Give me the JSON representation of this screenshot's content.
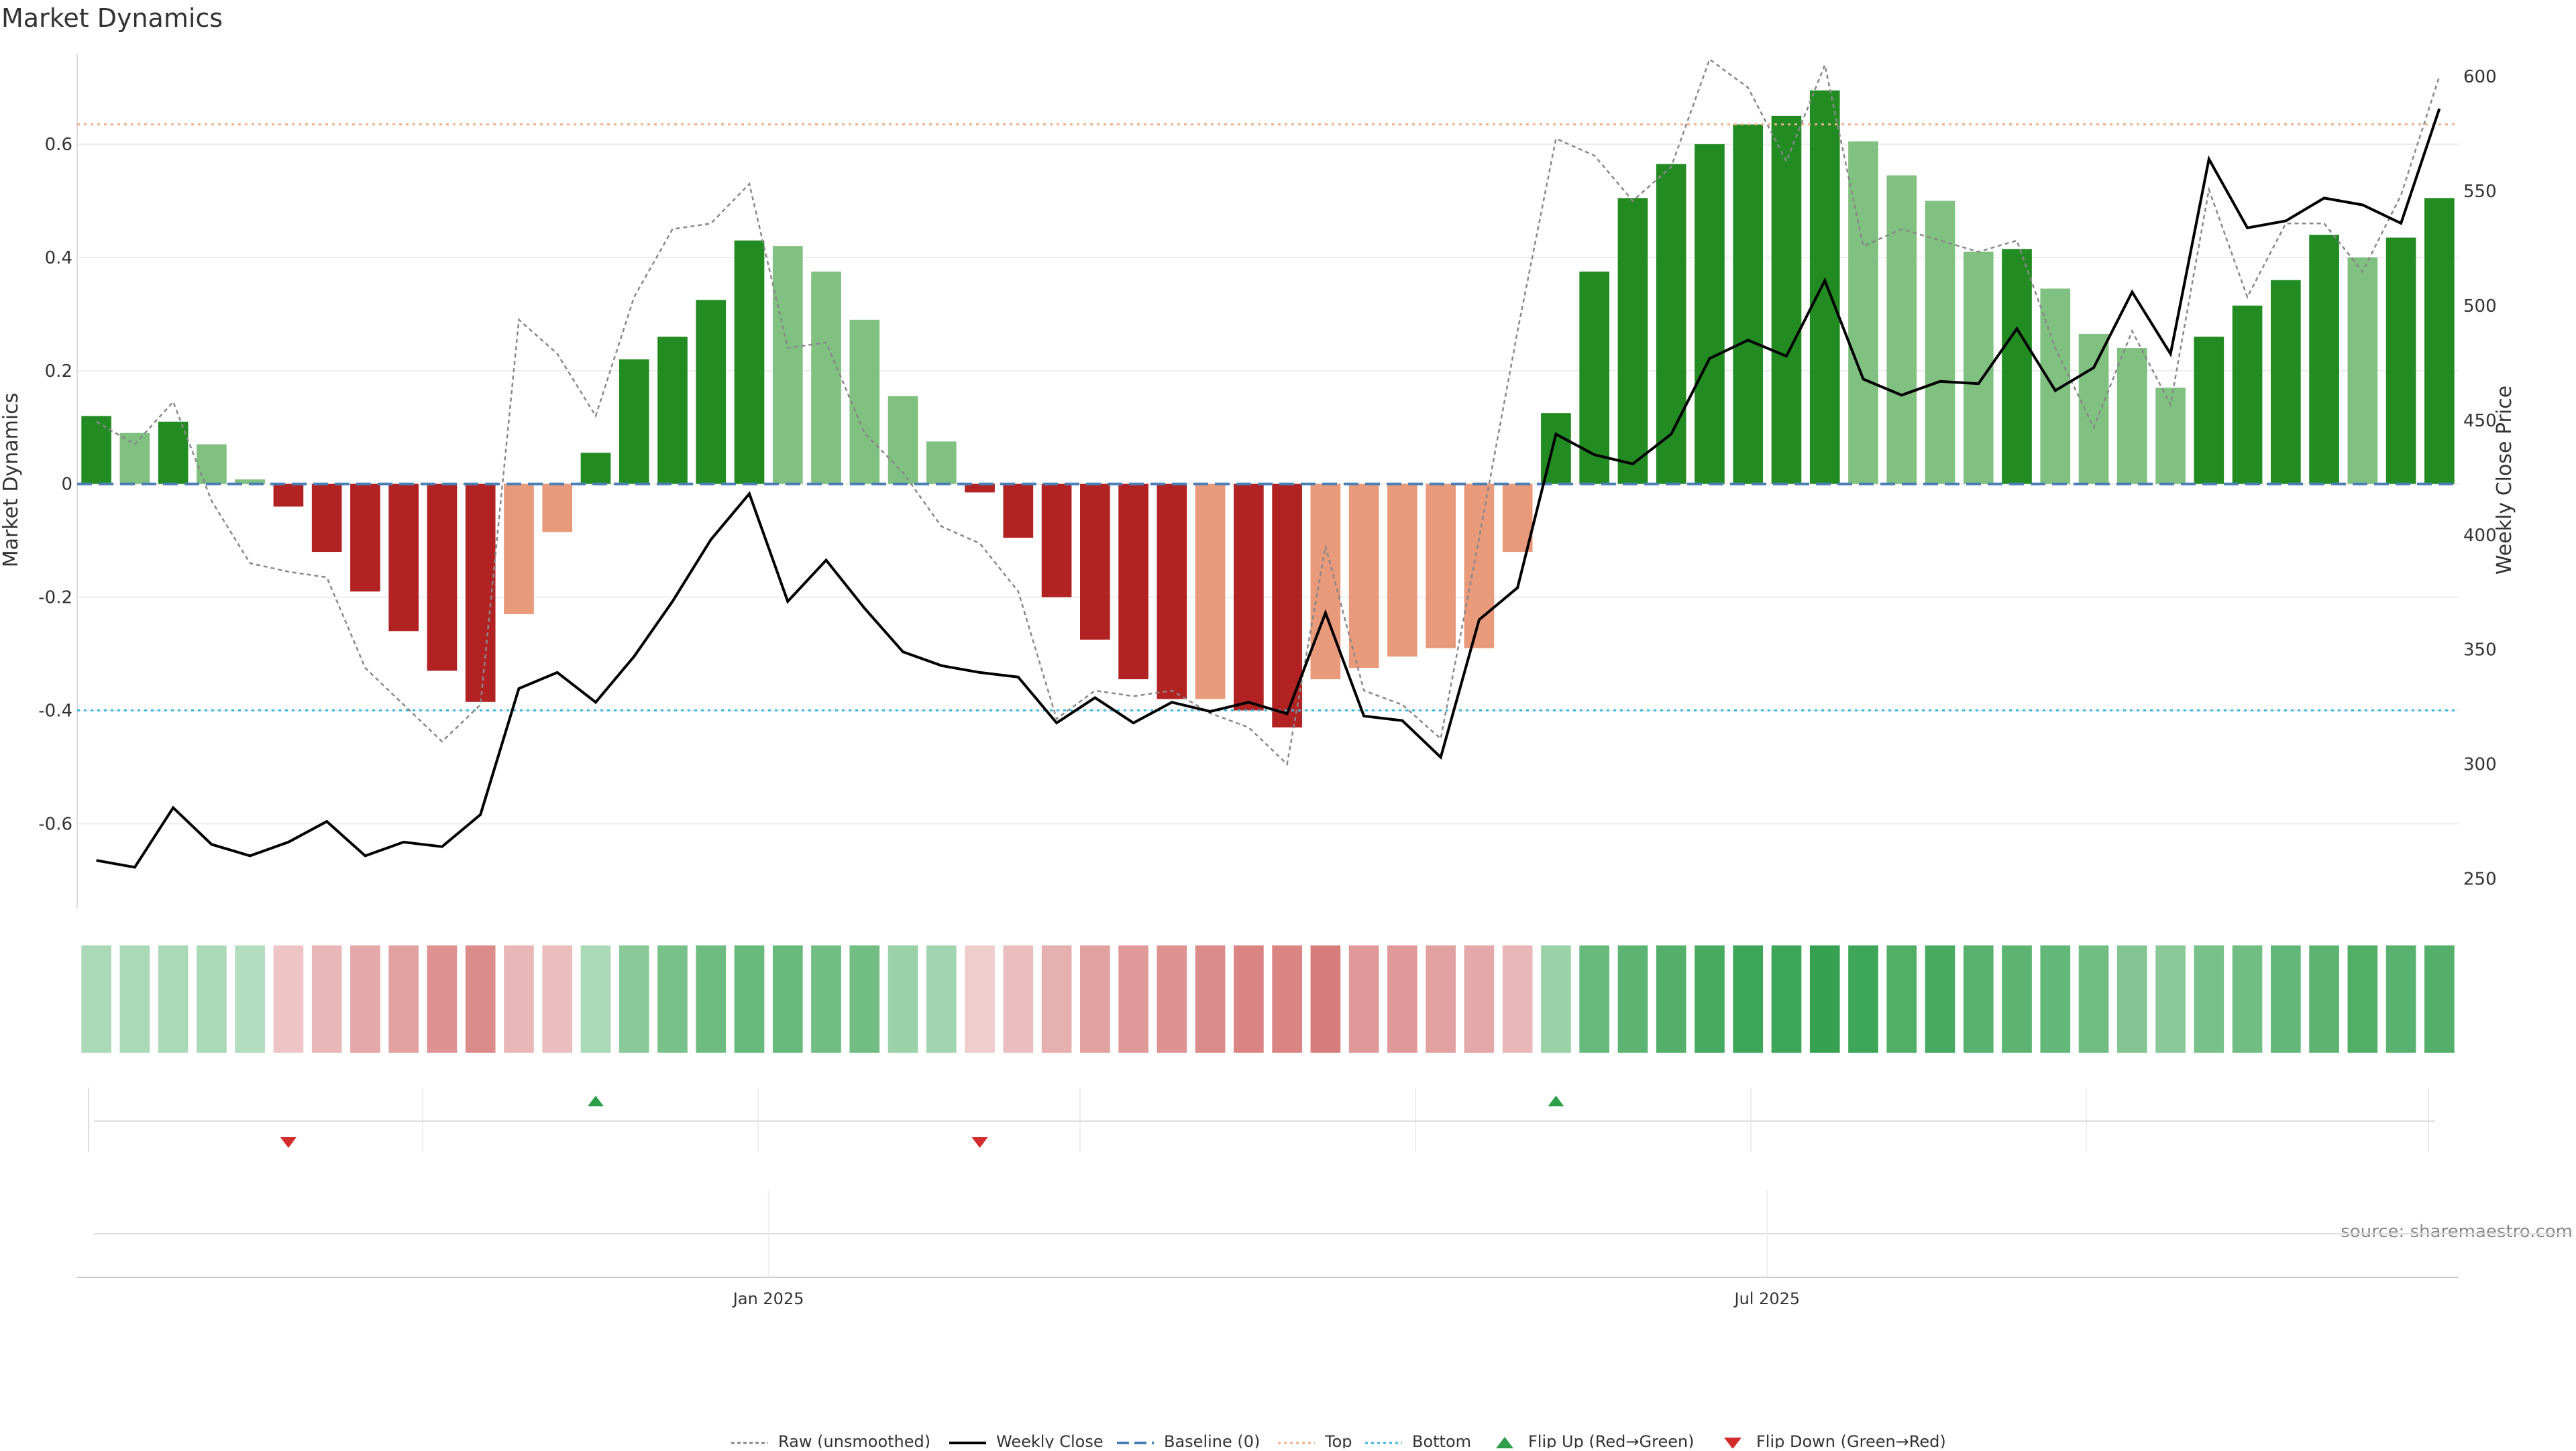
{
  "chart_data": {
    "type": "bar",
    "title": "Market Dynamics",
    "ylabel": "Market Dynamics",
    "y2label": "Weekly Close Price",
    "ylim": [
      -0.75,
      0.76
    ],
    "y2lim": [
      237,
      610
    ],
    "yticks": [
      -0.6,
      -0.4,
      -0.2,
      0,
      0.2,
      0.4,
      0.6
    ],
    "ytick_labels": [
      "-0.6",
      "-0.4",
      "-0.2",
      "0",
      "0.2",
      "0.4",
      "0.6"
    ],
    "y2ticks": [
      250,
      300,
      350,
      400,
      450,
      500,
      550,
      600
    ],
    "y2tick_labels": [
      "250",
      "300",
      "350",
      "400",
      "450",
      "500",
      "550",
      "600"
    ],
    "x_tick_labels": [
      {
        "label": "Jan 2025",
        "index": 17.5
      },
      {
        "label": "Jul 2025",
        "index": 43.5
      }
    ],
    "top_line": 0.635,
    "bottom_line": -0.4,
    "baseline": 0,
    "smoothed": [
      0.12,
      0.09,
      0.11,
      0.07,
      0.008,
      -0.04,
      -0.12,
      -0.19,
      -0.26,
      -0.33,
      -0.385,
      -0.23,
      -0.085,
      0.055,
      0.22,
      0.26,
      0.325,
      0.43,
      0.42,
      0.375,
      0.29,
      0.155,
      0.075,
      -0.015,
      -0.095,
      -0.2,
      -0.275,
      -0.345,
      -0.38,
      -0.38,
      -0.4,
      -0.43,
      -0.345,
      -0.325,
      -0.305,
      -0.29,
      -0.29,
      -0.12,
      0.125,
      0.375,
      0.505,
      0.565,
      0.6,
      0.635,
      0.65,
      0.695,
      0.605,
      0.545,
      0.5,
      0.41,
      0.415,
      0.345,
      0.265,
      0.24,
      0.17,
      0.26,
      0.315,
      0.36,
      0.44,
      0.4,
      0.435,
      0.505
    ],
    "bar_strength": [
      "strong",
      "weak",
      "strong",
      "weak",
      "weak",
      "strong",
      "strong",
      "strong",
      "strong",
      "strong",
      "strong",
      "weak",
      "weak",
      "strong",
      "strong",
      "strong",
      "strong",
      "strong",
      "weak",
      "weak",
      "weak",
      "weak",
      "weak",
      "strong",
      "strong",
      "strong",
      "strong",
      "strong",
      "strong",
      "weak",
      "strong",
      "strong",
      "weak",
      "weak",
      "weak",
      "weak",
      "weak",
      "weak",
      "strong",
      "strong",
      "strong",
      "strong",
      "strong",
      "strong",
      "strong",
      "strong",
      "weak",
      "weak",
      "weak",
      "weak",
      "strong",
      "weak",
      "weak",
      "weak",
      "weak",
      "strong",
      "strong",
      "strong",
      "strong",
      "weak",
      "strong",
      "strong"
    ],
    "raw": [
      0.11,
      0.07,
      0.145,
      -0.03,
      -0.14,
      -0.155,
      -0.165,
      -0.325,
      -0.39,
      -0.455,
      -0.39,
      0.29,
      0.23,
      0.12,
      0.33,
      0.45,
      0.46,
      0.53,
      0.24,
      0.25,
      0.09,
      0.02,
      -0.075,
      -0.105,
      -0.19,
      -0.415,
      -0.365,
      -0.375,
      -0.365,
      -0.405,
      -0.43,
      -0.495,
      -0.11,
      -0.365,
      -0.39,
      -0.45,
      -0.095,
      0.27,
      0.61,
      0.58,
      0.5,
      0.56,
      0.75,
      0.7,
      0.57,
      0.74,
      0.42,
      0.45,
      0.43,
      0.41,
      0.43,
      0.24,
      0.1,
      0.27,
      0.14,
      0.52,
      0.33,
      0.46,
      0.46,
      0.375,
      0.51,
      0.72
    ],
    "weekly_close": [
      258,
      255,
      281,
      265,
      260,
      266,
      275,
      260,
      266,
      264,
      278,
      333,
      340,
      327,
      347,
      371,
      398,
      418,
      371,
      389,
      368,
      349,
      343,
      340,
      338,
      318,
      329,
      318,
      327,
      323,
      327,
      322,
      366,
      321,
      319,
      303,
      363,
      377,
      444,
      435,
      431,
      444,
      477,
      485,
      478,
      511,
      468,
      461,
      467,
      466,
      490,
      463,
      473,
      506,
      479,
      564,
      534,
      537,
      547,
      544,
      536,
      586
    ],
    "heatmap_intensity": [
      0.25,
      0.25,
      0.25,
      0.25,
      0.2,
      0.15,
      0.25,
      0.35,
      0.4,
      0.5,
      0.55,
      0.25,
      0.2,
      0.25,
      0.45,
      0.55,
      0.62,
      0.65,
      0.65,
      0.6,
      0.6,
      0.35,
      0.3,
      0.1,
      0.2,
      0.3,
      0.4,
      0.45,
      0.5,
      0.55,
      0.6,
      0.6,
      0.65,
      0.45,
      0.45,
      0.4,
      0.35,
      0.25,
      0.35,
      0.65,
      0.72,
      0.78,
      0.85,
      0.9,
      0.9,
      0.95,
      0.9,
      0.8,
      0.85,
      0.75,
      0.72,
      0.68,
      0.6,
      0.5,
      0.45,
      0.55,
      0.6,
      0.68,
      0.72,
      0.8,
      0.75,
      0.78
    ],
    "flip_up_indices": [
      13,
      38
    ],
    "flip_down_indices": [
      5,
      23
    ],
    "legend": [
      "Raw (unsmoothed)",
      "Weekly Close",
      "Baseline (0)",
      "Top",
      "Bottom",
      "Flip Up (Red→Green)",
      "Flip Down (Green→Red)"
    ],
    "legend_position": "bottom-center",
    "source_text": "source: sharemaestro.com"
  },
  "colors": {
    "green_strong": "#228b22",
    "green_weak": "#80c080",
    "red_strong": "#b22222",
    "red_weak": "#e89a7a",
    "raw_line": "#888888",
    "close_line": "#000000",
    "baseline": "#4a7fb5",
    "top_line": "#f0b08a",
    "bottom_line": "#3ab6e0",
    "flip_up": "#2e9e4a",
    "flip_down": "#d22b2b",
    "grid": "#eeeeee",
    "heat_green": "#2e9e4a",
    "heat_red": "#c84a4a"
  }
}
